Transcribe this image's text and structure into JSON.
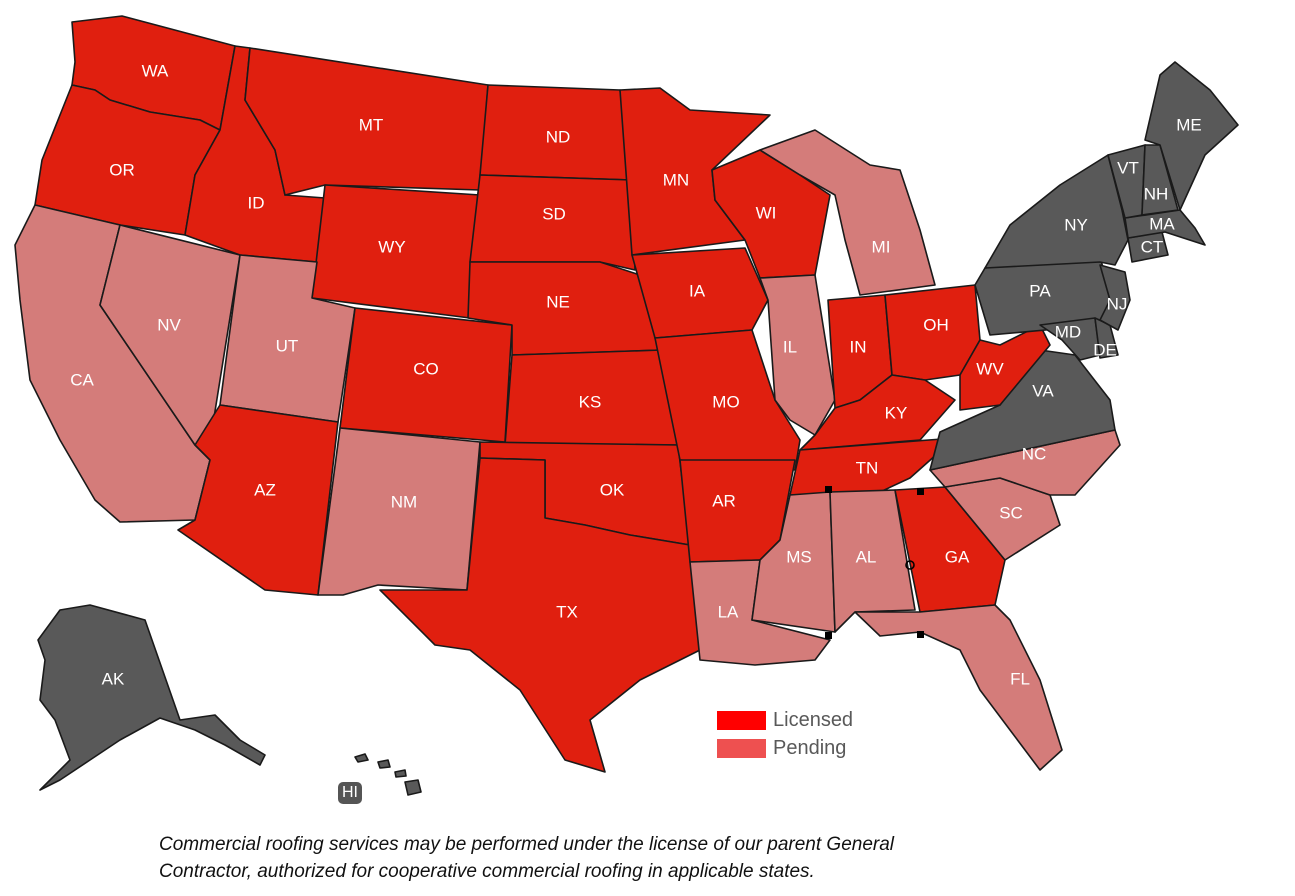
{
  "colors": {
    "licensed": "#e01f0f",
    "pending": "#d47c7a",
    "unlicensed": "#595959",
    "legend_licensed": "#ff0000",
    "legend_pending": "#ee5050"
  },
  "legend": {
    "licensed_label": "Licensed",
    "pending_label": "Pending"
  },
  "states": {
    "WA": {
      "label": "WA",
      "status": "licensed"
    },
    "OR": {
      "label": "OR",
      "status": "licensed"
    },
    "CA": {
      "label": "CA",
      "status": "pending"
    },
    "NV": {
      "label": "NV",
      "status": "pending"
    },
    "ID": {
      "label": "ID",
      "status": "licensed"
    },
    "MT": {
      "label": "MT",
      "status": "licensed"
    },
    "WY": {
      "label": "WY",
      "status": "licensed"
    },
    "UT": {
      "label": "UT",
      "status": "pending"
    },
    "AZ": {
      "label": "AZ",
      "status": "licensed"
    },
    "CO": {
      "label": "CO",
      "status": "licensed"
    },
    "NM": {
      "label": "NM",
      "status": "pending"
    },
    "ND": {
      "label": "ND",
      "status": "licensed"
    },
    "SD": {
      "label": "SD",
      "status": "licensed"
    },
    "NE": {
      "label": "NE",
      "status": "licensed"
    },
    "KS": {
      "label": "KS",
      "status": "licensed"
    },
    "OK": {
      "label": "OK",
      "status": "licensed"
    },
    "TX": {
      "label": "TX",
      "status": "licensed"
    },
    "MN": {
      "label": "MN",
      "status": "licensed"
    },
    "IA": {
      "label": "IA",
      "status": "licensed"
    },
    "MO": {
      "label": "MO",
      "status": "licensed"
    },
    "AR": {
      "label": "AR",
      "status": "licensed"
    },
    "LA": {
      "label": "LA",
      "status": "pending"
    },
    "WI": {
      "label": "WI",
      "status": "licensed"
    },
    "IL": {
      "label": "IL",
      "status": "pending"
    },
    "MI": {
      "label": "MI",
      "status": "pending"
    },
    "IN": {
      "label": "IN",
      "status": "licensed"
    },
    "OH": {
      "label": "OH",
      "status": "licensed"
    },
    "KY": {
      "label": "KY",
      "status": "licensed"
    },
    "TN": {
      "label": "TN",
      "status": "licensed"
    },
    "MS": {
      "label": "MS",
      "status": "pending"
    },
    "AL": {
      "label": "AL",
      "status": "pending"
    },
    "GA": {
      "label": "GA",
      "status": "licensed"
    },
    "FL": {
      "label": "FL",
      "status": "pending"
    },
    "SC": {
      "label": "SC",
      "status": "pending"
    },
    "NC": {
      "label": "NC",
      "status": "pending"
    },
    "VA": {
      "label": "VA",
      "status": "unlicensed"
    },
    "WV": {
      "label": "WV",
      "status": "licensed"
    },
    "MD": {
      "label": "MD",
      "status": "unlicensed"
    },
    "DE": {
      "label": "DE",
      "status": "unlicensed"
    },
    "PA": {
      "label": "PA",
      "status": "unlicensed"
    },
    "NJ": {
      "label": "NJ",
      "status": "unlicensed"
    },
    "NY": {
      "label": "NY",
      "status": "unlicensed"
    },
    "CT": {
      "label": "CT",
      "status": "unlicensed"
    },
    "MA": {
      "label": "MA",
      "status": "unlicensed"
    },
    "VT": {
      "label": "VT",
      "status": "unlicensed"
    },
    "NH": {
      "label": "NH",
      "status": "unlicensed"
    },
    "ME": {
      "label": "ME",
      "status": "unlicensed"
    },
    "AK": {
      "label": "AK",
      "status": "unlicensed"
    },
    "HI": {
      "label": "HI",
      "status": "unlicensed"
    }
  },
  "note": {
    "line1": "Commercial roofing services may be performed under the license of our parent General",
    "line2": "Contractor, authorized for cooperative commercial roofing in applicable states."
  }
}
